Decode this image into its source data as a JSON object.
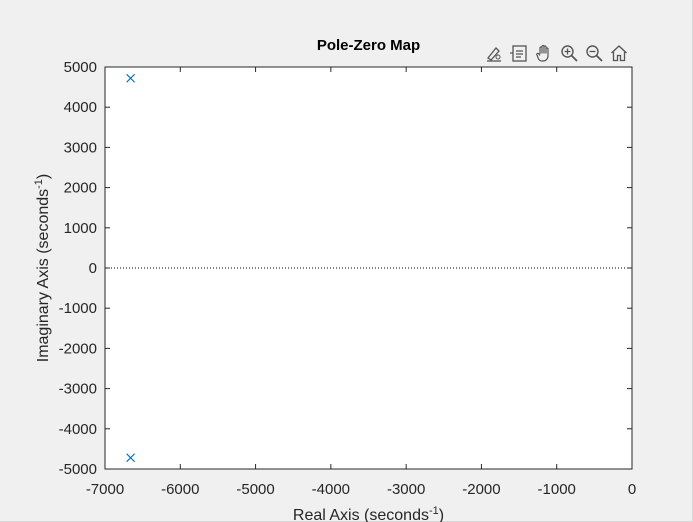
{
  "toolbar": {
    "items": [
      {
        "name": "brush-icon"
      },
      {
        "name": "data-tips-icon"
      },
      {
        "name": "pan-hand-icon"
      },
      {
        "name": "zoom-in-icon"
      },
      {
        "name": "zoom-out-icon"
      },
      {
        "name": "home-icon"
      }
    ]
  },
  "colors": {
    "background": "#f0f0f0",
    "axes_background": "#ffffff",
    "marker": "#0072bd",
    "axis_text": "#262626"
  },
  "chart_data": {
    "type": "scatter",
    "title": "Pole-Zero Map",
    "xlabel": "Real Axis (seconds",
    "ylabel": "Imaginary Axis (seconds",
    "label_superscript": "-1",
    "label_suffix": ")",
    "xlim": [
      -7000,
      0
    ],
    "ylim": [
      -5000,
      5000
    ],
    "xticks": [
      -7000,
      -6000,
      -5000,
      -4000,
      -3000,
      -2000,
      -1000,
      0
    ],
    "yticks": [
      -5000,
      -4000,
      -3000,
      -2000,
      -1000,
      0,
      1000,
      2000,
      3000,
      4000,
      5000
    ],
    "grid": false,
    "zero_line": "dotted",
    "series": [
      {
        "marker": "x",
        "points": [
          {
            "x": -6660,
            "y": 4720
          },
          {
            "x": -6660,
            "y": -4720
          }
        ]
      }
    ]
  }
}
